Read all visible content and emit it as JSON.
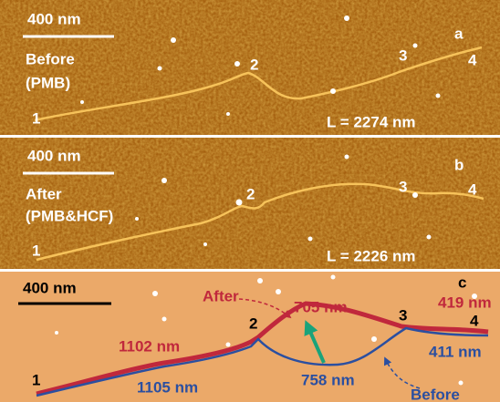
{
  "panels": [
    {
      "label": "a",
      "scale_bar": "400 nm",
      "condition": [
        "Before",
        "(PMB)"
      ],
      "length": "L = 2274 nm",
      "points": [
        "1",
        "2",
        "3",
        "4"
      ]
    },
    {
      "label": "b",
      "scale_bar": "400 nm",
      "condition": [
        "After",
        "(PMB&HCF)"
      ],
      "length": "L = 2226 nm",
      "points": [
        "1",
        "2",
        "3",
        "4"
      ]
    },
    {
      "label": "c",
      "scale_bar": "400 nm",
      "after": "After",
      "before": "Before",
      "after_segments": [
        "1102 nm",
        "705 nm",
        "419 nm"
      ],
      "before_segments": [
        "1105 nm",
        "758 nm",
        "411 nm"
      ],
      "points": [
        "1",
        "2",
        "3",
        "4"
      ]
    }
  ]
}
